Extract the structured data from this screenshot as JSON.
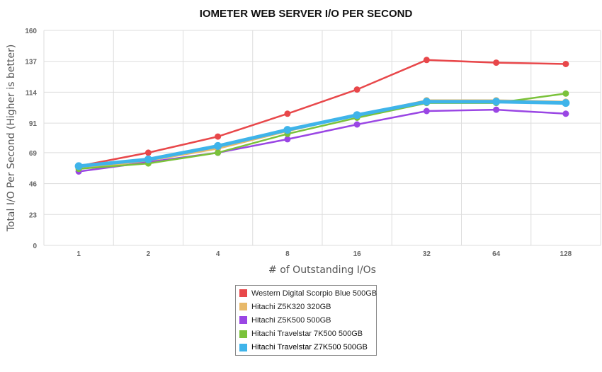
{
  "chart_data": {
    "type": "line",
    "title": "IOMETER WEB SERVER I/O PER SECOND",
    "xlabel": "# of Outstanding I/Os",
    "ylabel": "Total I/O Per Second (Higher is better)",
    "categories": [
      "1",
      "2",
      "4",
      "8",
      "16",
      "32",
      "64",
      "128"
    ],
    "yticks": [
      "0",
      "23",
      "46",
      "69",
      "91",
      "114",
      "137",
      "160"
    ],
    "ylim": [
      0,
      160
    ],
    "grid": true,
    "legend_position": "bottom",
    "series": [
      {
        "name": "Western Digital Scorpio Blue 500GB",
        "color": "#e8474a",
        "values": [
          59,
          69,
          81,
          98,
          116,
          138,
          136,
          135
        ]
      },
      {
        "name": "Hitachi Z5K320 320GB",
        "color": "#e8b96a",
        "values": [
          57,
          63,
          72,
          85,
          97,
          108,
          108,
          107
        ]
      },
      {
        "name": "Hitachi Z5K500 500GB",
        "color": "#9a46e4",
        "values": [
          55,
          62,
          69,
          79,
          90,
          100,
          101,
          98
        ]
      },
      {
        "name": "Hitachi Travelstar 7K500 500GB",
        "color": "#7ac23a",
        "values": [
          57,
          61,
          69,
          83,
          95,
          106,
          106,
          113
        ]
      },
      {
        "name": "Hitachi Travelstar Z7K500 500GB",
        "color": "#3fb4ea",
        "values": [
          59,
          64,
          74,
          86,
          97,
          107,
          107,
          106
        ]
      }
    ]
  }
}
